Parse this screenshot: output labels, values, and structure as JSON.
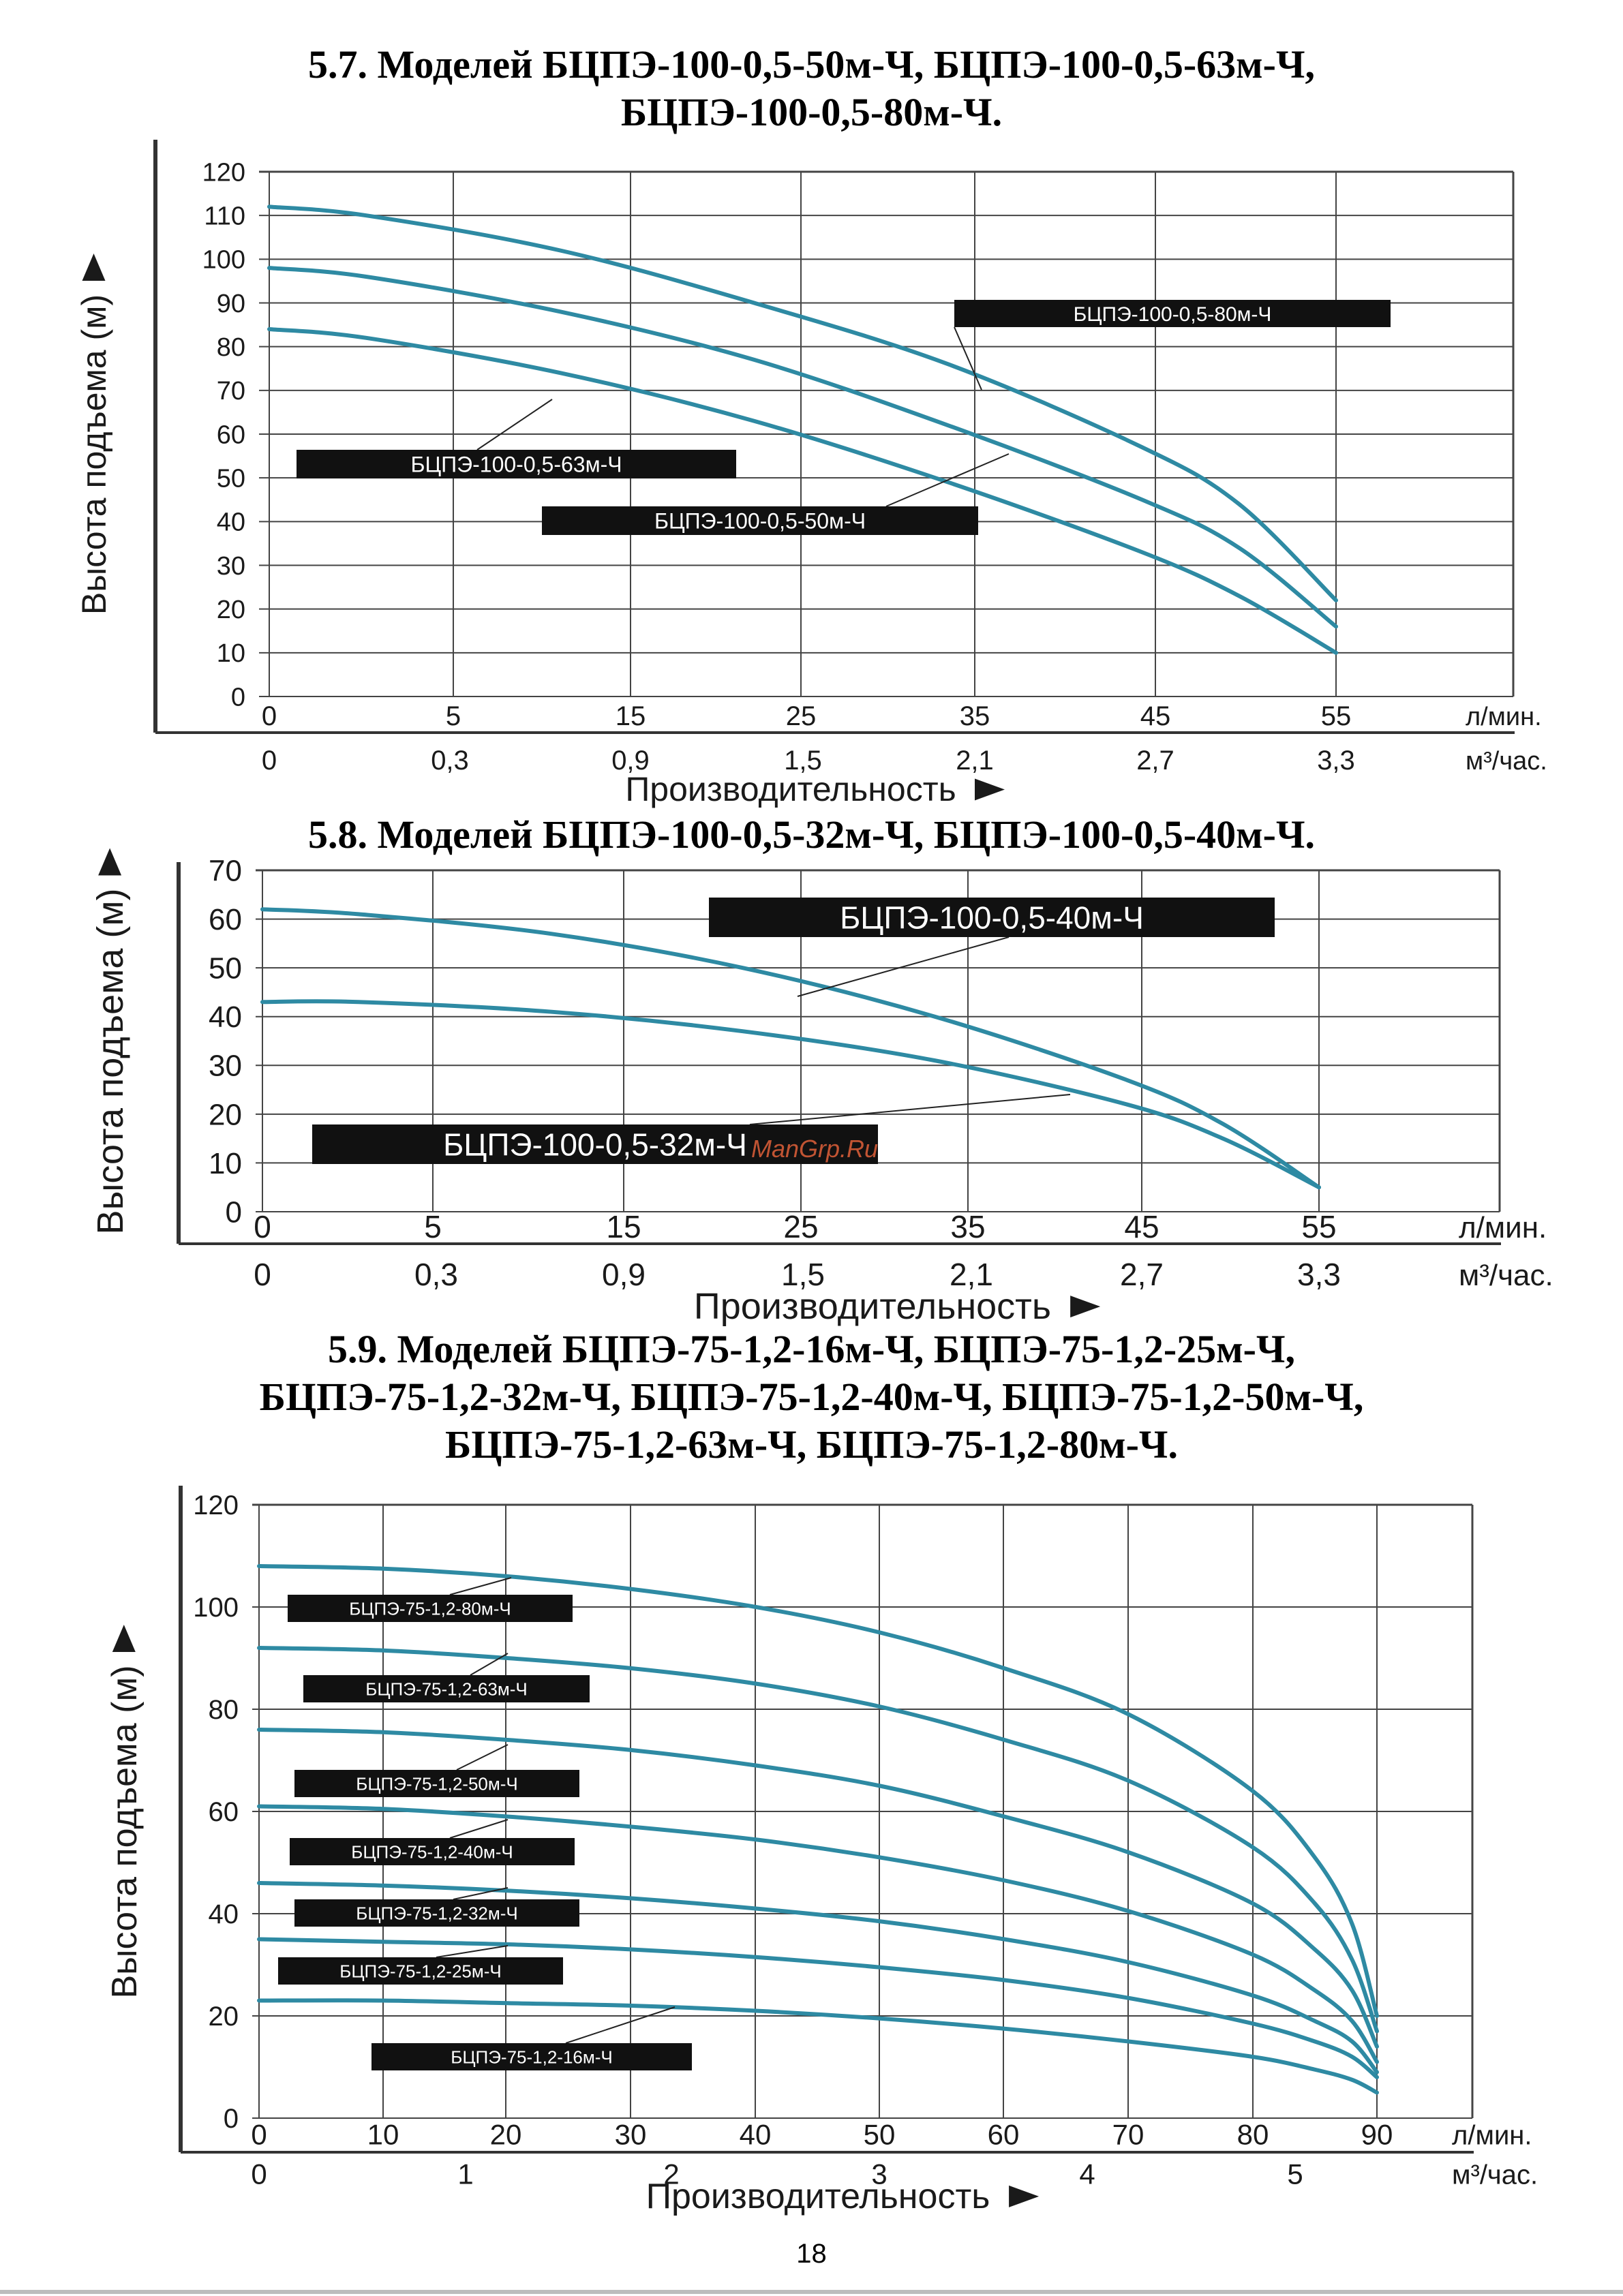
{
  "sections": [
    {
      "title_lines": [
        "5.7. Моделей БЦПЭ-100-0,5-50м-Ч, БЦПЭ-100-0,5-63м-Ч,",
        "БЦПЭ-100-0,5-80м-Ч."
      ]
    },
    {
      "title_lines": [
        "5.8. Моделей БЦПЭ-100-0,5-32м-Ч, БЦПЭ-100-0,5-40м-Ч."
      ]
    },
    {
      "title_lines": [
        "5.9. Моделей БЦПЭ-75-1,2-16м-Ч, БЦПЭ-75-1,2-25м-Ч,",
        "БЦПЭ-75-1,2-32м-Ч, БЦПЭ-75-1,2-40м-Ч, БЦПЭ-75-1,2-50м-Ч,",
        "БЦПЭ-75-1,2-63м-Ч, БЦПЭ-75-1,2-80м-Ч."
      ]
    }
  ],
  "chart_data": [
    {
      "type": "line",
      "ylabel": "Высота подъема (м)",
      "xlabel": "Производительность",
      "x_unit": "л/мин.",
      "x2_unit": "м³/час.",
      "x_ticks": [
        "0",
        "5",
        "15",
        "25",
        "35",
        "45",
        "55"
      ],
      "x2_ticks": [
        "0",
        "0,3",
        "0,9",
        "1,5",
        "2,1",
        "2,7",
        "3,3"
      ],
      "y_ticks": [
        "0",
        "10",
        "20",
        "30",
        "40",
        "50",
        "60",
        "70",
        "80",
        "90",
        "100",
        "110",
        "120"
      ],
      "ylim": [
        0,
        120
      ],
      "grid": true,
      "line_color": "#2e8aa3",
      "series": [
        {
          "name": "БЦПЭ-100-0,5-80м-Ч",
          "x": [
            0,
            5,
            15,
            25,
            35,
            45,
            50,
            55
          ],
          "y": [
            112,
            110,
            102,
            90,
            76,
            57,
            44,
            22
          ]
        },
        {
          "name": "БЦПЭ-100-0,5-63м-Ч",
          "x": [
            0,
            5,
            15,
            25,
            35,
            45,
            50,
            55
          ],
          "y": [
            98,
            96,
            88,
            77,
            62,
            45,
            34,
            16
          ]
        },
        {
          "name": "БЦПЭ-100-0,5-50м-Ч",
          "x": [
            0,
            5,
            15,
            25,
            35,
            45,
            50,
            55
          ],
          "y": [
            84,
            82,
            74,
            63,
            49,
            33,
            23,
            10
          ]
        }
      ]
    },
    {
      "type": "line",
      "ylabel": "Высота подъема (м)",
      "xlabel": "Производительность",
      "x_unit": "л/мин.",
      "x2_unit": "м³/час.",
      "x_ticks": [
        "0",
        "5",
        "15",
        "25",
        "35",
        "45",
        "55"
      ],
      "x2_ticks": [
        "0",
        "0,3",
        "0,9",
        "1,5",
        "2,1",
        "2,7",
        "3,3"
      ],
      "y_ticks": [
        "0",
        "10",
        "20",
        "30",
        "40",
        "50",
        "60",
        "70"
      ],
      "ylim": [
        0,
        70
      ],
      "grid": true,
      "line_color": "#2e8aa3",
      "series": [
        {
          "name": "БЦПЭ-100-0,5-40м-Ч",
          "x": [
            0,
            5,
            15,
            25,
            35,
            45,
            50,
            55
          ],
          "y": [
            62,
            61,
            57,
            50,
            40,
            27,
            18,
            5
          ]
        },
        {
          "name": "БЦПЭ-100-0,5-32м-Ч",
          "x": [
            0,
            5,
            15,
            25,
            35,
            45,
            50,
            55
          ],
          "y": [
            43,
            43,
            41,
            37,
            31,
            22,
            15,
            5
          ]
        }
      ]
    },
    {
      "type": "line",
      "ylabel": "Высота подъема (м)",
      "xlabel": "Производительность",
      "x_unit": "л/мин.",
      "x2_unit": "м³/час.",
      "x_ticks": [
        "0",
        "10",
        "20",
        "30",
        "40",
        "50",
        "60",
        "70",
        "80",
        "90"
      ],
      "x2_ticks": [
        "0",
        "1",
        "2",
        "3",
        "4",
        "5"
      ],
      "y_ticks": [
        "0",
        "20",
        "40",
        "60",
        "80",
        "100",
        "120"
      ],
      "ylim": [
        0,
        120
      ],
      "grid": true,
      "line_color": "#2e8aa3",
      "series": [
        {
          "name": "БЦПЭ-75-1,2-80м-Ч",
          "x": [
            0,
            10,
            20,
            30,
            40,
            50,
            60,
            70,
            80,
            85,
            88,
            90
          ],
          "y": [
            108,
            107.5,
            106,
            103.5,
            100,
            95,
            88,
            79,
            64,
            51,
            38,
            20
          ]
        },
        {
          "name": "БЦПЭ-75-1,2-63м-Ч",
          "x": [
            0,
            10,
            20,
            30,
            40,
            50,
            60,
            70,
            80,
            85,
            88,
            90
          ],
          "y": [
            92,
            91.5,
            90,
            88,
            85,
            80.5,
            74,
            66,
            53,
            42,
            31,
            17
          ]
        },
        {
          "name": "БЦПЭ-75-1,2-50м-Ч",
          "x": [
            0,
            10,
            20,
            30,
            40,
            50,
            60,
            70,
            80,
            85,
            88,
            90
          ],
          "y": [
            76,
            75.5,
            74,
            72,
            69,
            65,
            59,
            52,
            42,
            33,
            25,
            14
          ]
        },
        {
          "name": "БЦПЭ-75-1,2-40м-Ч",
          "x": [
            0,
            10,
            20,
            30,
            40,
            50,
            60,
            70,
            80,
            85,
            88,
            90
          ],
          "y": [
            61,
            60.5,
            59,
            57,
            54.5,
            51,
            46.5,
            40.5,
            32,
            25,
            19,
            11
          ]
        },
        {
          "name": "БЦПЭ-75-1,2-32м-Ч",
          "x": [
            0,
            10,
            20,
            30,
            40,
            50,
            60,
            70,
            80,
            85,
            88,
            90
          ],
          "y": [
            46,
            45.5,
            44.5,
            43,
            41,
            38.5,
            35,
            30.5,
            24,
            19,
            15,
            9
          ]
        },
        {
          "name": "БЦПЭ-75-1,2-25м-Ч",
          "x": [
            0,
            10,
            20,
            30,
            40,
            50,
            60,
            70,
            80,
            85,
            88,
            90
          ],
          "y": [
            35,
            34.5,
            34,
            33,
            31.5,
            29.5,
            27,
            23.5,
            18.5,
            15,
            12,
            8
          ]
        },
        {
          "name": "БЦПЭ-75-1,2-16м-Ч",
          "x": [
            0,
            10,
            20,
            30,
            40,
            50,
            60,
            70,
            80,
            85,
            88,
            90
          ],
          "y": [
            23,
            23,
            22.5,
            22,
            21,
            19.5,
            17.5,
            15,
            12,
            9.5,
            7.5,
            5
          ]
        }
      ]
    }
  ],
  "watermark": "ManGrp.Ru",
  "page_number": "18"
}
